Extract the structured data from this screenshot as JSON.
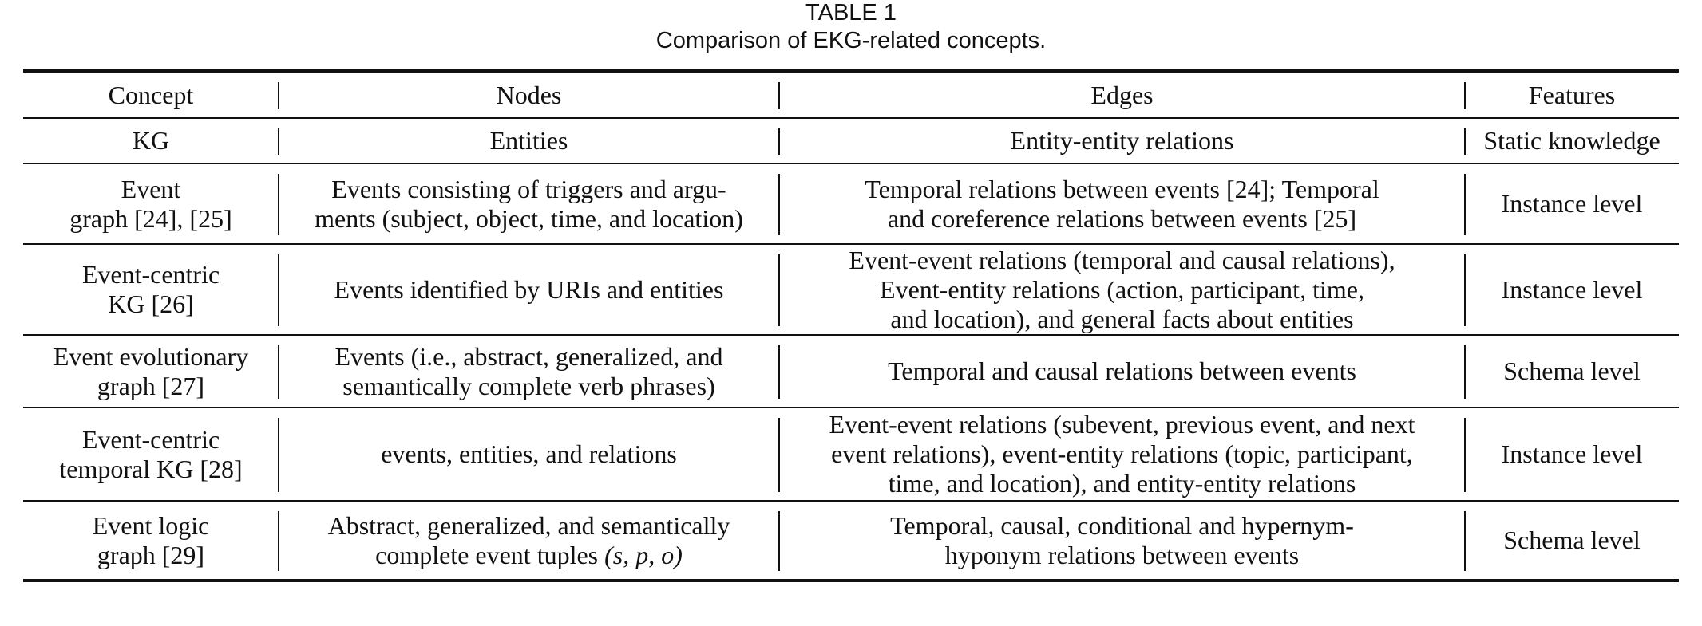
{
  "caption": {
    "label": "TABLE 1",
    "title": "Comparison of EKG-related concepts."
  },
  "table": {
    "headers": [
      "Concept",
      "Nodes",
      "Edges",
      "Features"
    ],
    "rows": [
      {
        "concept": "KG",
        "nodes": "Entities",
        "edges": "Entity-entity relations",
        "features": "Static knowledge"
      },
      {
        "concept_lines": [
          "Event",
          "graph [24], [25]"
        ],
        "nodes_lines": [
          "Events consisting of triggers and argu-",
          "ments (subject, object, time, and location)"
        ],
        "edges_lines": [
          "Temporal relations between events [24]; Temporal",
          "and coreference relations between events [25]"
        ],
        "features": "Instance level"
      },
      {
        "concept_lines": [
          "Event-centric",
          "KG [26]"
        ],
        "nodes": "Events identified by URIs and entities",
        "edges_lines": [
          "Event-event relations (temporal and causal relations),",
          "Event-entity relations (action, participant, time,",
          "and location), and general facts about entities"
        ],
        "features": "Instance level"
      },
      {
        "concept_lines": [
          "Event evolutionary",
          "graph [27]"
        ],
        "nodes_lines": [
          "Events (i.e., abstract, generalized, and",
          "semantically complete verb phrases)"
        ],
        "edges": "Temporal and causal relations between events",
        "features": "Schema level"
      },
      {
        "concept_lines": [
          "Event-centric",
          "temporal KG [28]"
        ],
        "nodes": "events, entities, and relations",
        "edges_lines": [
          "Event-event relations (subevent, previous event, and next",
          "event relations), event-entity relations (topic, participant,",
          "time, and location), and entity-entity relations"
        ],
        "features": "Instance level"
      },
      {
        "concept_lines": [
          "Event logic",
          "graph [29]"
        ],
        "nodes_lines": [
          "Abstract, generalized, and semantically",
          "complete event tuples"
        ],
        "nodes_math": "(s, p, o)",
        "edges_lines": [
          "Temporal, causal, conditional and hypernym-",
          "hyponym relations between events"
        ],
        "features": "Schema level"
      }
    ]
  }
}
